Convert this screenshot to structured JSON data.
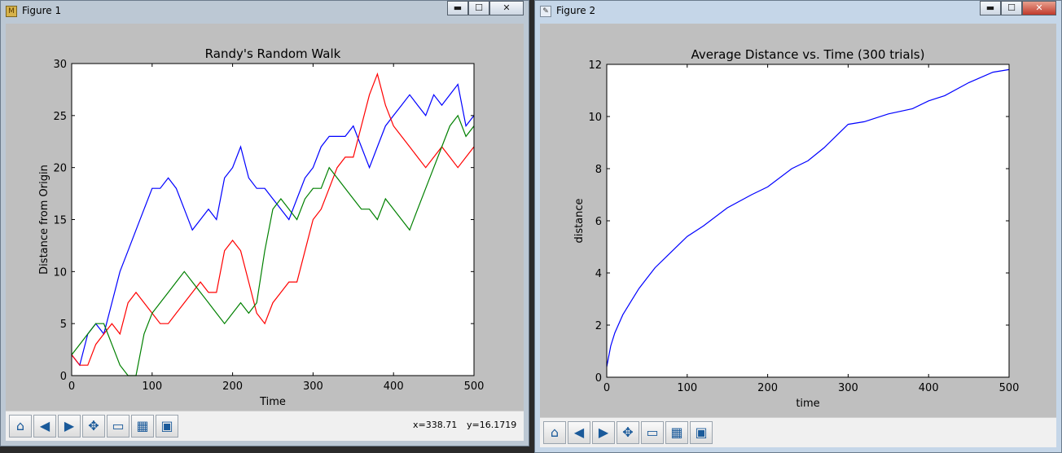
{
  "windows": {
    "fig1": {
      "title": "Figure 1"
    },
    "fig2": {
      "title": "Figure 2"
    }
  },
  "window_controls": {
    "minimize": "▬",
    "maximize": "☐",
    "close": "✕"
  },
  "toolbar": {
    "buttons": [
      {
        "name": "home-button",
        "icon": "home-icon",
        "glyph": "⌂"
      },
      {
        "name": "back-button",
        "icon": "arrow-left-icon",
        "glyph": "◀"
      },
      {
        "name": "forward-button",
        "icon": "arrow-right-icon",
        "glyph": "▶"
      },
      {
        "name": "pan-button",
        "icon": "move-icon",
        "glyph": "✥"
      },
      {
        "name": "zoom-button",
        "icon": "zoom-rect-icon",
        "glyph": "▭"
      },
      {
        "name": "subplots-button",
        "icon": "subplots-icon",
        "glyph": "▦"
      },
      {
        "name": "save-button",
        "icon": "save-icon",
        "glyph": "▣"
      }
    ],
    "coords_x": "x=338.71",
    "coords_y": "y=16.1719"
  },
  "chart_data": [
    {
      "type": "line",
      "title": "Randy's Random Walk",
      "xlabel": "Time",
      "ylabel": "Distance from Origin",
      "xlim": [
        0,
        500
      ],
      "ylim": [
        0,
        30
      ],
      "xticks": [
        0,
        100,
        200,
        300,
        400,
        500
      ],
      "yticks": [
        0,
        5,
        10,
        15,
        20,
        25,
        30
      ],
      "grid": false,
      "series": [
        {
          "color": "#0000ff",
          "x": [
            0,
            10,
            20,
            30,
            40,
            50,
            60,
            70,
            80,
            90,
            100,
            110,
            120,
            130,
            140,
            150,
            160,
            170,
            180,
            190,
            200,
            210,
            220,
            230,
            240,
            250,
            260,
            270,
            280,
            290,
            300,
            310,
            320,
            330,
            340,
            350,
            360,
            370,
            380,
            390,
            400,
            410,
            420,
            430,
            440,
            450,
            460,
            470,
            480,
            490,
            500
          ],
          "y": [
            2,
            1,
            4,
            5,
            4,
            7,
            10,
            12,
            14,
            16,
            18,
            18,
            19,
            18,
            16,
            14,
            15,
            16,
            15,
            19,
            20,
            22,
            19,
            18,
            18,
            17,
            16,
            15,
            17,
            19,
            20,
            22,
            23,
            23,
            23,
            24,
            22,
            20,
            22,
            24,
            25,
            26,
            27,
            26,
            25,
            27,
            26,
            27,
            28,
            24,
            25
          ]
        },
        {
          "color": "#ff0000",
          "x": [
            0,
            10,
            20,
            30,
            40,
            50,
            60,
            70,
            80,
            90,
            100,
            110,
            120,
            130,
            140,
            150,
            160,
            170,
            180,
            190,
            200,
            210,
            220,
            230,
            240,
            250,
            260,
            270,
            280,
            290,
            300,
            310,
            320,
            330,
            340,
            350,
            360,
            370,
            380,
            390,
            400,
            410,
            420,
            430,
            440,
            450,
            460,
            470,
            480,
            490,
            500
          ],
          "y": [
            2,
            1,
            1,
            3,
            4,
            5,
            4,
            7,
            8,
            7,
            6,
            5,
            5,
            6,
            7,
            8,
            9,
            8,
            8,
            12,
            13,
            12,
            9,
            6,
            5,
            7,
            8,
            9,
            9,
            12,
            15,
            16,
            18,
            20,
            21,
            21,
            24,
            27,
            29,
            26,
            24,
            23,
            22,
            21,
            20,
            21,
            22,
            21,
            20,
            21,
            22
          ]
        },
        {
          "color": "#008000",
          "x": [
            0,
            10,
            20,
            30,
            40,
            50,
            60,
            70,
            80,
            90,
            100,
            110,
            120,
            130,
            140,
            150,
            160,
            170,
            180,
            190,
            200,
            210,
            220,
            230,
            240,
            250,
            260,
            270,
            280,
            290,
            300,
            310,
            320,
            330,
            340,
            350,
            360,
            370,
            380,
            390,
            400,
            410,
            420,
            430,
            440,
            450,
            460,
            470,
            480,
            490,
            500
          ],
          "y": [
            2,
            3,
            4,
            5,
            5,
            3,
            1,
            0,
            0,
            4,
            6,
            7,
            8,
            9,
            10,
            9,
            8,
            7,
            6,
            5,
            6,
            7,
            6,
            7,
            12,
            16,
            17,
            16,
            15,
            17,
            18,
            18,
            20,
            19,
            18,
            17,
            16,
            16,
            15,
            17,
            16,
            15,
            14,
            16,
            18,
            20,
            22,
            24,
            25,
            23,
            24
          ]
        }
      ]
    },
    {
      "type": "line",
      "title": "Average Distance vs. Time (300 trials)",
      "xlabel": "time",
      "ylabel": "distance",
      "xlim": [
        0,
        500
      ],
      "ylim": [
        0,
        12
      ],
      "xticks": [
        0,
        100,
        200,
        300,
        400,
        500
      ],
      "yticks": [
        0,
        2,
        4,
        6,
        8,
        10,
        12
      ],
      "grid": false,
      "series": [
        {
          "color": "#0000ff",
          "x": [
            0,
            5,
            10,
            20,
            30,
            40,
            50,
            60,
            80,
            100,
            120,
            150,
            180,
            200,
            230,
            250,
            270,
            290,
            300,
            320,
            350,
            380,
            400,
            420,
            450,
            480,
            500
          ],
          "y": [
            0.4,
            1.2,
            1.7,
            2.4,
            2.9,
            3.4,
            3.8,
            4.2,
            4.8,
            5.4,
            5.8,
            6.5,
            7.0,
            7.3,
            8.0,
            8.3,
            8.8,
            9.4,
            9.7,
            9.8,
            10.1,
            10.3,
            10.6,
            10.8,
            11.3,
            11.7,
            11.8
          ]
        }
      ]
    }
  ]
}
